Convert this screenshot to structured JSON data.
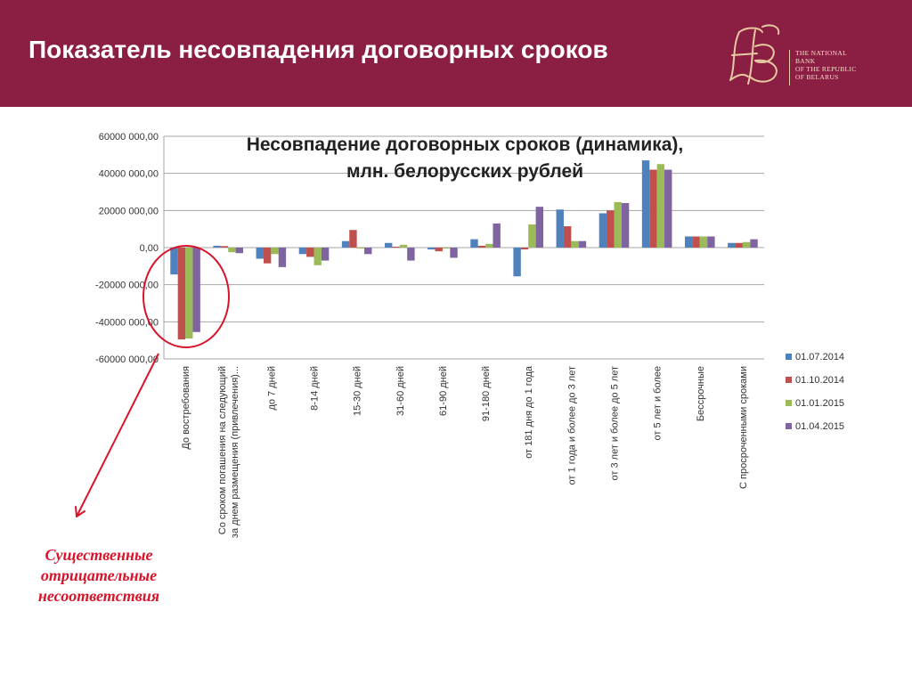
{
  "header": {
    "title": "Показатель несовпадения договорных сроков",
    "logo_text": [
      "THE NATIONAL",
      "BANK",
      "OF THE REPUBLIC",
      "OF BELARUS"
    ],
    "background_color": "#8B1E43"
  },
  "annotation": {
    "lines": [
      "Существенные",
      "отрицательные",
      "несоответствия"
    ],
    "color": "#d8142b"
  },
  "chart_data": {
    "type": "bar",
    "title_lines": [
      "Несовпадение договорных сроков (динамика),",
      "млн. белорусских рублей"
    ],
    "categories": [
      [
        "До востребования"
      ],
      [
        "Со сроком погашения на следующий",
        "за днем размещения (привлечения)..."
      ],
      [
        "до 7 дней"
      ],
      [
        "8-14 дней"
      ],
      [
        "15-30 дней"
      ],
      [
        "31-60 дней"
      ],
      [
        "61-90 дней"
      ],
      [
        "91-180 дней"
      ],
      [
        "от 181 дня до 1 года"
      ],
      [
        "от 1 года и более до 3 лет"
      ],
      [
        "от 3 лет и более до 5 лет"
      ],
      [
        "от 5 лет и более"
      ],
      [
        "Бессрочные"
      ],
      [
        "С просроченными сроками"
      ]
    ],
    "series": [
      {
        "name": "01.07.2014",
        "color": "#4F81BD",
        "values": [
          -14500000,
          1000000,
          -6000000,
          -3500000,
          3500000,
          2500000,
          -1000000,
          4500000,
          -15500000,
          20500000,
          18500000,
          47000000,
          6000000,
          2500000
        ]
      },
      {
        "name": "01.10.2014",
        "color": "#C0504D",
        "values": [
          -49500000,
          800000,
          -8500000,
          -5000000,
          9500000,
          500000,
          -2000000,
          1000000,
          -1000000,
          11500000,
          20000000,
          42000000,
          6000000,
          2500000
        ]
      },
      {
        "name": "01.01.2015",
        "color": "#9BBB59",
        "values": [
          -49000000,
          -2500000,
          -3500000,
          -9500000,
          -500000,
          1500000,
          -500000,
          2000000,
          12500000,
          3500000,
          24500000,
          45000000,
          6000000,
          3000000
        ]
      },
      {
        "name": "01.04.2015",
        "color": "#8064A2",
        "values": [
          -45500000,
          -3000000,
          -10500000,
          -7000000,
          -3500000,
          -7000000,
          -5500000,
          13000000,
          22000000,
          3500000,
          24000000,
          42000000,
          6000000,
          4500000
        ]
      }
    ],
    "y_ticks": [
      "60000 000,00",
      "40000 000,00",
      "20000 000,00",
      "0,00",
      "-20000 000,00",
      "-40000 000,00",
      "-60000 000,00"
    ],
    "ylim": [
      -60000000,
      60000000
    ],
    "grid": true,
    "legend_position": "right"
  }
}
